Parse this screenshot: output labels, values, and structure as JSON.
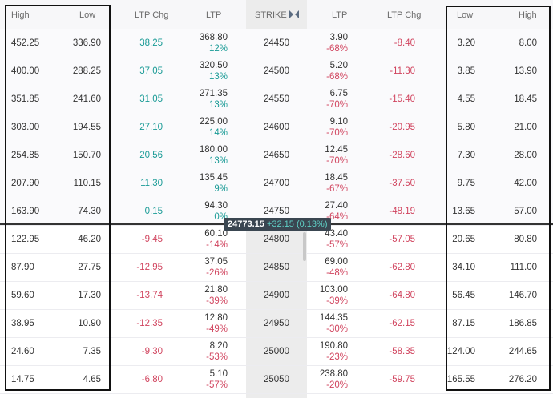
{
  "header": {
    "high": "High",
    "low": "Low",
    "ltp_chg": "LTP Chg",
    "ltp": "LTP",
    "strike": "STRIKE",
    "ltp_put": "LTP",
    "ltp_chg_put": "LTP Chg",
    "low_put": "Low",
    "high_put": "High",
    "expand_icon": "expand-collapse-icon"
  },
  "spot": {
    "price": "24773.15",
    "change": "+32.15 (0.13%)"
  },
  "rows": [
    {
      "c_high": "452.25",
      "c_low": "336.90",
      "c_chg": "38.25",
      "c_ltp": "368.80",
      "c_pct": "12%",
      "strike": "24450",
      "p_ltp": "3.90",
      "p_pct": "-68%",
      "p_chg": "-8.40",
      "p_low": "3.20",
      "p_high": "8.00",
      "c_itm": true
    },
    {
      "c_high": "400.00",
      "c_low": "288.25",
      "c_chg": "37.05",
      "c_ltp": "320.50",
      "c_pct": "13%",
      "strike": "24500",
      "p_ltp": "5.20",
      "p_pct": "-68%",
      "p_chg": "-11.30",
      "p_low": "3.85",
      "p_high": "13.90",
      "c_itm": true
    },
    {
      "c_high": "351.85",
      "c_low": "241.60",
      "c_chg": "31.05",
      "c_ltp": "271.35",
      "c_pct": "13%",
      "strike": "24550",
      "p_ltp": "6.75",
      "p_pct": "-70%",
      "p_chg": "-15.40",
      "p_low": "4.55",
      "p_high": "18.45",
      "c_itm": true
    },
    {
      "c_high": "303.00",
      "c_low": "194.55",
      "c_chg": "27.10",
      "c_ltp": "225.00",
      "c_pct": "14%",
      "strike": "24600",
      "p_ltp": "9.10",
      "p_pct": "-70%",
      "p_chg": "-20.95",
      "p_low": "5.80",
      "p_high": "21.00",
      "c_itm": true
    },
    {
      "c_high": "254.85",
      "c_low": "150.70",
      "c_chg": "20.56",
      "c_ltp": "180.00",
      "c_pct": "13%",
      "strike": "24650",
      "p_ltp": "12.45",
      "p_pct": "-70%",
      "p_chg": "-28.60",
      "p_low": "7.30",
      "p_high": "28.00",
      "c_itm": true
    },
    {
      "c_high": "207.90",
      "c_low": "110.15",
      "c_chg": "11.30",
      "c_ltp": "135.45",
      "c_pct": "9%",
      "strike": "24700",
      "p_ltp": "18.45",
      "p_pct": "-67%",
      "p_chg": "-37.50",
      "p_low": "9.75",
      "p_high": "42.00",
      "c_itm": true
    },
    {
      "c_high": "163.90",
      "c_low": "74.30",
      "c_chg": "0.15",
      "c_ltp": "94.30",
      "c_pct": "0%",
      "strike": "24750",
      "p_ltp": "27.40",
      "p_pct": "-64%",
      "p_chg": "-48.19",
      "p_low": "13.65",
      "p_high": "57.00",
      "c_itm": true
    },
    {
      "c_high": "122.95",
      "c_low": "46.20",
      "c_chg": "-9.45",
      "c_ltp": "60.10",
      "c_pct": "-14%",
      "strike": "24800",
      "p_ltp": "43.40",
      "p_pct": "-57%",
      "p_chg": "-57.05",
      "p_low": "20.65",
      "p_high": "80.80",
      "c_itm": false
    },
    {
      "c_high": "87.90",
      "c_low": "27.75",
      "c_chg": "-12.95",
      "c_ltp": "37.05",
      "c_pct": "-26%",
      "strike": "24850",
      "p_ltp": "69.00",
      "p_pct": "-48%",
      "p_chg": "-62.80",
      "p_low": "34.10",
      "p_high": "111.00",
      "c_itm": false
    },
    {
      "c_high": "59.60",
      "c_low": "17.30",
      "c_chg": "-13.74",
      "c_ltp": "21.80",
      "c_pct": "-39%",
      "strike": "24900",
      "p_ltp": "103.00",
      "p_pct": "-39%",
      "p_chg": "-64.80",
      "p_low": "56.45",
      "p_high": "146.70",
      "c_itm": false
    },
    {
      "c_high": "38.95",
      "c_low": "10.90",
      "c_chg": "-12.35",
      "c_ltp": "12.80",
      "c_pct": "-49%",
      "strike": "24950",
      "p_ltp": "144.35",
      "p_pct": "-30%",
      "p_chg": "-62.15",
      "p_low": "87.15",
      "p_high": "186.85",
      "c_itm": false
    },
    {
      "c_high": "24.60",
      "c_low": "7.35",
      "c_chg": "-9.30",
      "c_ltp": "8.20",
      "c_pct": "-53%",
      "strike": "25000",
      "p_ltp": "190.80",
      "p_pct": "-23%",
      "p_chg": "-58.35",
      "p_low": "124.00",
      "p_high": "244.65",
      "c_itm": false
    },
    {
      "c_high": "14.75",
      "c_low": "4.65",
      "c_chg": "-6.80",
      "c_ltp": "5.10",
      "c_pct": "-57%",
      "strike": "25050",
      "p_ltp": "238.80",
      "p_pct": "-20%",
      "p_chg": "-59.75",
      "p_low": "165.55",
      "p_high": "276.20",
      "c_itm": false
    }
  ],
  "colors": {
    "positive": "#1a9b96",
    "negative": "#d1455f",
    "strike_band": "#ececec"
  }
}
